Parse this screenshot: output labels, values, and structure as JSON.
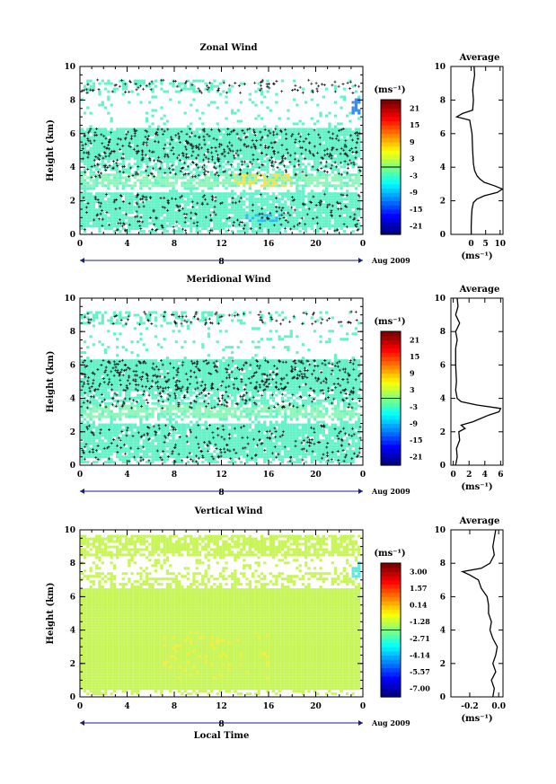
{
  "chart_data": [
    {
      "type": "heatmap",
      "title": "Zonal Wind",
      "ylabel": "Height (km)",
      "xticks": [
        "0",
        "4",
        "8",
        "12",
        "16",
        "20",
        "0"
      ],
      "date_marker": "8",
      "date_label": "Aug 2009",
      "xlim": [
        0,
        24
      ],
      "ylim": [
        0,
        10
      ],
      "yticks": [
        "0",
        "2",
        "4",
        "6",
        "8",
        "10"
      ],
      "colorbar": {
        "unit": "(ms⁻¹)",
        "ticks": [
          "21",
          "15",
          "9",
          "3",
          "-3",
          "-9",
          "-15",
          "-21"
        ],
        "range": [
          -24,
          24
        ]
      },
      "profile": {
        "title": "Average",
        "xlabel": "(ms⁻¹)",
        "xticks": [
          "0",
          "5",
          "10"
        ],
        "xlim": [
          -7,
          11
        ],
        "heights": [
          0.0,
          0.5,
          1.0,
          1.5,
          1.9,
          2.1,
          2.3,
          2.5,
          2.7,
          2.9,
          3.1,
          3.3,
          3.5,
          3.8,
          4.2,
          5.0,
          6.0,
          6.8,
          7.0,
          7.2,
          7.4,
          8.0,
          8.6,
          9.0,
          9.5,
          10.0
        ],
        "values": [
          0.0,
          0.0,
          0.1,
          0.3,
          0.8,
          2.0,
          4.5,
          9.0,
          10.8,
          8.0,
          4.5,
          3.0,
          2.0,
          1.2,
          0.8,
          0.5,
          0.3,
          -0.5,
          -5.0,
          -3.0,
          0.5,
          0.8,
          0.5,
          0.8,
          1.2,
          1.0
        ]
      }
    },
    {
      "type": "heatmap",
      "title": "Meridional Wind",
      "ylabel": "Height (km)",
      "xticks": [
        "0",
        "4",
        "8",
        "12",
        "16",
        "20",
        "0"
      ],
      "date_marker": "8",
      "date_label": "Aug 2009",
      "xlim": [
        0,
        24
      ],
      "ylim": [
        0,
        10
      ],
      "yticks": [
        "0",
        "2",
        "4",
        "6",
        "8",
        "10"
      ],
      "colorbar": {
        "unit": "(ms⁻¹)",
        "ticks": [
          "21",
          "15",
          "9",
          "3",
          "-3",
          "-9",
          "-15",
          "-21"
        ],
        "range": [
          -24,
          24
        ]
      },
      "profile": {
        "title": "Average",
        "xlabel": "(ms⁻¹)",
        "xticks": [
          "0",
          "2",
          "4",
          "6"
        ],
        "xlim": [
          -0.3,
          6.3
        ],
        "heights": [
          0.0,
          0.5,
          1.0,
          1.5,
          2.0,
          2.2,
          2.4,
          2.6,
          2.8,
          3.0,
          3.2,
          3.4,
          3.6,
          3.8,
          4.0,
          4.5,
          5.0,
          6.0,
          7.0,
          7.5,
          8.0,
          8.5,
          9.0,
          9.5,
          10.0
        ],
        "values": [
          0.3,
          0.5,
          0.4,
          0.8,
          0.7,
          1.5,
          1.0,
          2.5,
          3.5,
          4.5,
          5.8,
          6.0,
          3.0,
          1.0,
          0.5,
          0.3,
          0.4,
          0.3,
          0.3,
          0.5,
          0.3,
          0.8,
          0.3,
          0.6,
          0.5
        ]
      }
    },
    {
      "type": "heatmap",
      "title": "Vertical Wind",
      "ylabel": "Height (km)",
      "xlabel": "Local Time",
      "xticks": [
        "0",
        "4",
        "8",
        "12",
        "16",
        "20",
        "0"
      ],
      "date_marker": "8",
      "date_label": "Aug 2009",
      "xlim": [
        0,
        24
      ],
      "ylim": [
        0,
        10
      ],
      "yticks": [
        "0",
        "2",
        "4",
        "6",
        "8",
        "10"
      ],
      "colorbar": {
        "unit": "(ms⁻¹)",
        "ticks": [
          "3.00",
          "1.57",
          "0.14",
          "-1.28",
          "-2.71",
          "-4.14",
          "-5.57",
          "-7.00"
        ],
        "range": [
          -7.71,
          3.71
        ]
      },
      "profile": {
        "title": "Average",
        "xlabel": "(ms⁻¹)",
        "xticks": [
          "-0.2",
          "0.0"
        ],
        "xlim": [
          -0.33,
          0.03
        ],
        "heights": [
          0.0,
          0.5,
          1.0,
          1.5,
          2.0,
          2.5,
          3.0,
          3.5,
          4.0,
          4.5,
          5.0,
          5.5,
          6.0,
          6.5,
          7.0,
          7.3,
          7.5,
          7.7,
          8.0,
          8.5,
          9.0,
          9.5,
          10.0
        ],
        "values": [
          -0.04,
          -0.03,
          -0.05,
          -0.02,
          -0.04,
          -0.02,
          -0.01,
          -0.04,
          -0.06,
          -0.05,
          -0.07,
          -0.07,
          -0.08,
          -0.12,
          -0.14,
          -0.2,
          -0.25,
          -0.12,
          -0.06,
          -0.03,
          -0.04,
          -0.03,
          -0.02
        ]
      }
    }
  ]
}
